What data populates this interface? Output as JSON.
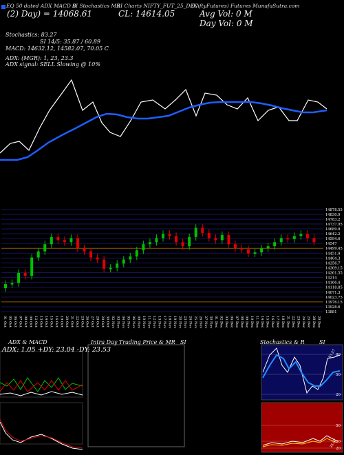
{
  "header": {
    "legend_marker_color": "#1e5eff",
    "line1_left": "EQ 50 dated ADX MACD B",
    "line1_mid1": "SI Stochastics MR",
    "line1_mid2": "SI Charts NIFTY_FUT_25_DEC",
    "line1_right": "(NiftyFutures) Futures MunafaSutra.com",
    "line2_left": "(2) Day) = 14068.61",
    "close_label": "CL: 14614.05",
    "avg_vol": "Avg Vol: 0 M",
    "day_vol": "Day Vol: 0 M"
  },
  "indicators": {
    "stochastics": "Stochastics: 83.27",
    "si": "SI 14/5: 35.87 / 60.89",
    "macd": "MACD: 14632.12, 14582.07, 70.05 C",
    "adx": "ADX: (MGR): 1, 23, 23.3",
    "adx_signal": "ADX signal: SELL Slowing @ 10%"
  },
  "price_axis": [
    "14878.55",
    "14830.9",
    "14783.2",
    "14737.95",
    "14689.8",
    "14642.2",
    "14594.6",
    "14547",
    "14499.45",
    "14451.9",
    "14404.3",
    "14356.7",
    "14309.15",
    "14261.55",
    "14214",
    "14166.4",
    "14118.85",
    "14071.3",
    "14023.75",
    "13976.15",
    "13928.6",
    "13881"
  ],
  "date_axis": [
    "01 Oct",
    "05 Oct",
    "06 Oct",
    "07 Oct",
    "08 Oct",
    "09 Oct",
    "12 Oct",
    "13 Oct",
    "14 Oct",
    "15 Oct",
    "16 Oct",
    "19 Oct",
    "20 Oct",
    "21 Oct",
    "22 Oct",
    "23 Oct",
    "26 Oct",
    "27 Oct",
    "28 Oct",
    "29 Oct",
    "30 Oct",
    "02 Nov",
    "03 Nov",
    "04 Nov",
    "05 Nov",
    "06 Nov",
    "09 Nov",
    "10 Nov",
    "11 Nov",
    "12 Nov",
    "13 Nov",
    "17 Nov",
    "18 Nov",
    "19 Nov",
    "20 Nov",
    "23 Nov",
    "24 Nov",
    "25 Nov",
    "26 Nov",
    "27 Nov",
    "30 Nov",
    "01 Dec",
    "02 Dec",
    "03 Dec",
    "04 Dec",
    "07 Dec",
    "08 Dec",
    "09 Dec",
    "10 Dec",
    "11 Dec",
    "14 Dec",
    "15 Dec",
    "16 Dec",
    "17 Dec",
    "18 Dec",
    "21 Dec",
    "22 Dec",
    "23 Dec",
    "24 Dec",
    "25 Dec",
    "28 Dec",
    "29 Dec"
  ],
  "panels": {
    "adx_title": "ADX & MACD",
    "adx_vals": "ADX: 1.05  +DY: 23.04  -DY: 23.53",
    "intra_title": "Intra Day Trading Price & MR",
    "intra_si": "SI",
    "stoch_title": "Stochastics & R",
    "stoch_si": "SI",
    "stoch_levels": [
      "80",
      "50",
      "20"
    ],
    "rsi_levels": [
      "50",
      "30",
      "20"
    ],
    "stoch_marker": "83.27",
    "rsi_marker": "35.87"
  },
  "chart_data": {
    "type": "candlestick",
    "colors": {
      "up": "#00c000",
      "down": "#e00000",
      "ma": "#1e5eff",
      "price_line": "#ffffff"
    },
    "price_range": [
      13881,
      14878.55
    ],
    "candles_close": [
      14150,
      14160,
      14260,
      14230,
      14410,
      14470,
      14540,
      14610,
      14580,
      14560,
      14600,
      14500,
      14470,
      14410,
      14390,
      14300,
      14310,
      14350,
      14390,
      14420,
      14480,
      14540,
      14560,
      14600,
      14640,
      14620,
      14560,
      14520,
      14610,
      14700,
      14650,
      14600,
      14580,
      14630,
      14540,
      14500,
      14490,
      14450,
      14460,
      14500,
      14520,
      14560,
      14600,
      14590,
      14620,
      14640,
      14600,
      14560
    ]
  }
}
